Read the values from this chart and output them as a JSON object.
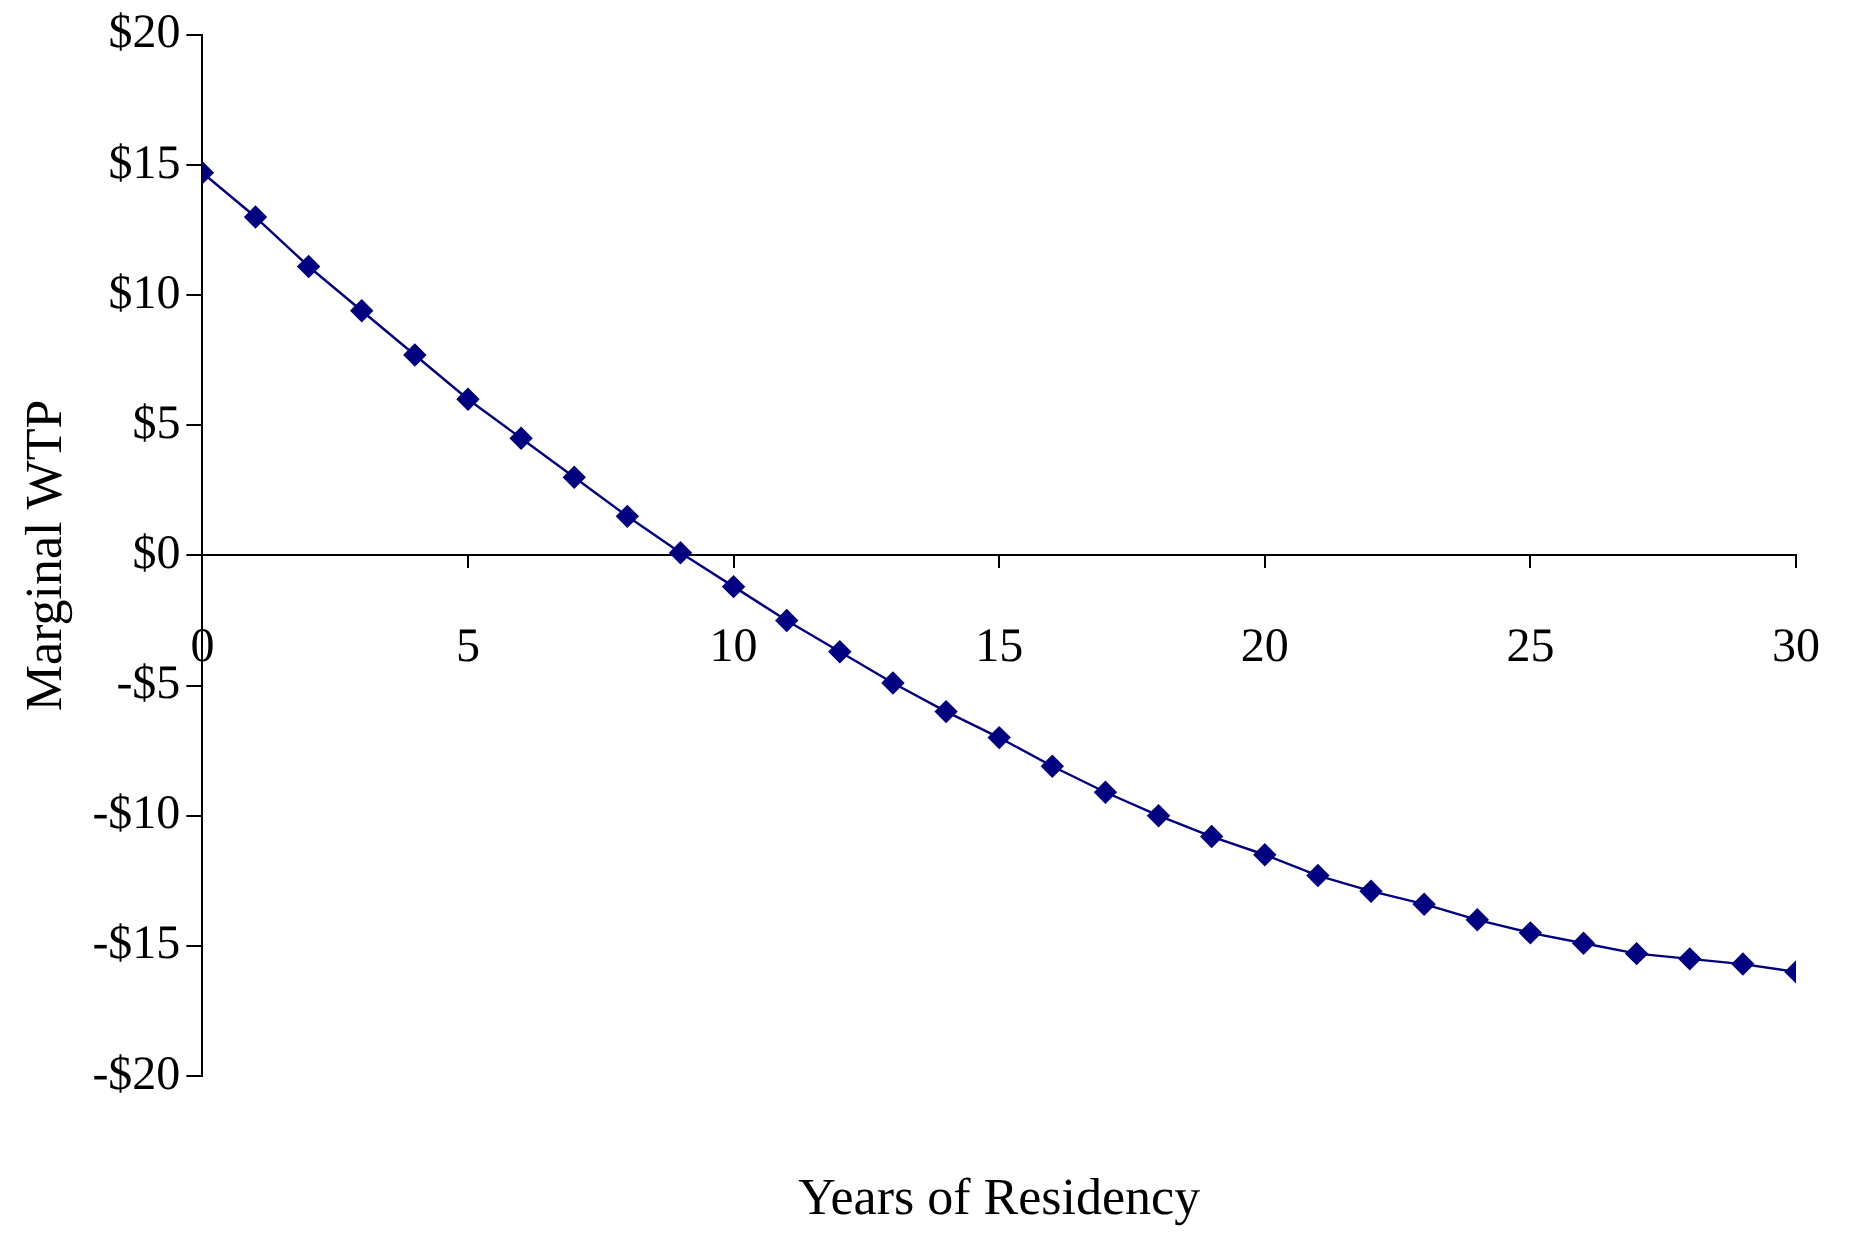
{
  "chart_data": {
    "type": "line",
    "xlabel": "Years of Residency",
    "ylabel": "Marginal WTP",
    "x": [
      0,
      1,
      2,
      3,
      4,
      5,
      6,
      7,
      8,
      9,
      10,
      11,
      12,
      13,
      14,
      15,
      16,
      17,
      18,
      19,
      20,
      21,
      22,
      23,
      24,
      25,
      26,
      27,
      28,
      29,
      30
    ],
    "series": [
      {
        "color": "#000080",
        "values": [
          14.7,
          13.0,
          11.1,
          9.4,
          7.7,
          6.0,
          4.5,
          3.0,
          1.5,
          0.1,
          -1.2,
          -2.5,
          -3.7,
          -4.9,
          -6.0,
          -7.0,
          -8.1,
          -9.1,
          -10.0,
          -10.8,
          -11.5,
          -12.3,
          -12.9,
          -13.4,
          -14.0,
          -14.5,
          -14.9,
          -15.3,
          -15.5,
          -15.7,
          -16.0
        ]
      }
    ],
    "xlim": [
      0,
      30
    ],
    "xticks": [
      0,
      5,
      10,
      15,
      20,
      25,
      30
    ],
    "ylim": [
      -20,
      20
    ],
    "yticks": [
      {
        "value": -20,
        "label": "-$20"
      },
      {
        "value": -15,
        "label": "-$15"
      },
      {
        "value": -10,
        "label": "-$10"
      },
      {
        "value": -5,
        "label": "-$5"
      },
      {
        "value": 0,
        "label": "$0"
      },
      {
        "value": 5,
        "label": "$5"
      },
      {
        "value": 10,
        "label": "$10"
      },
      {
        "value": 15,
        "label": "$15"
      },
      {
        "value": 20,
        "label": "$20"
      }
    ],
    "grid": false,
    "legend": false,
    "marker": "diamond",
    "line_style": "solid"
  }
}
